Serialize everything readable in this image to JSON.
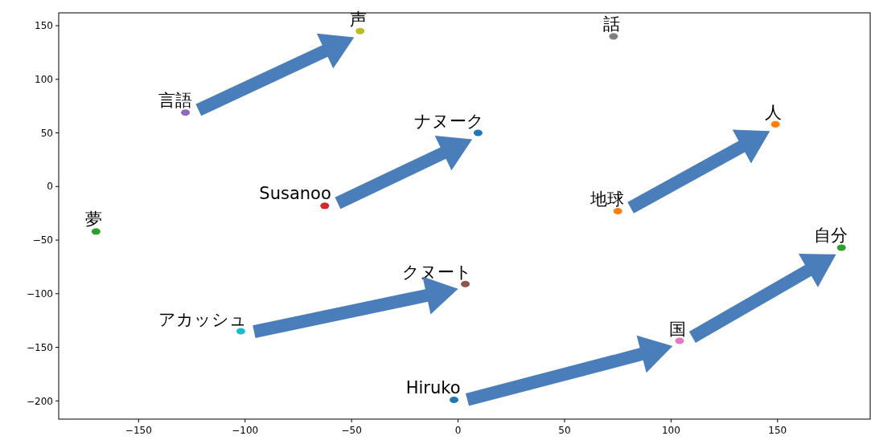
{
  "chart_data": {
    "type": "scatter",
    "xlim": [
      -187.5,
      193.5
    ],
    "ylim": [
      -217,
      162
    ],
    "xticks": [
      {
        "value": -150,
        "label": "−150"
      },
      {
        "value": -100,
        "label": "−100"
      },
      {
        "value": -50,
        "label": "−50"
      },
      0,
      50,
      100,
      150
    ],
    "yticks": [
      {
        "value": -200,
        "label": "−200"
      },
      {
        "value": -150,
        "label": "−150"
      },
      {
        "value": -100,
        "label": "−100"
      },
      {
        "value": -50,
        "label": "−50"
      },
      0,
      50,
      100,
      150
    ],
    "grid": false,
    "marker": "circle",
    "series": [
      {
        "name": "Hiruko",
        "color": "#1f77b4",
        "x": [
          -1.9
        ],
        "values": [
          -199
        ]
      },
      {
        "name": "地球",
        "color": "#ff7f0e",
        "x": [
          75
        ],
        "values": [
          -23
        ]
      },
      {
        "name": "夢",
        "color": "#2ca02c",
        "x": [
          -170
        ],
        "values": [
          -42
        ]
      },
      {
        "name": "Susanoo",
        "color": "#d62728",
        "x": [
          -62.6
        ],
        "values": [
          -18
        ]
      },
      {
        "name": "言語",
        "color": "#9467bd",
        "x": [
          -128
        ],
        "values": [
          69
        ]
      },
      {
        "name": "クヌート",
        "color": "#8c564b",
        "x": [
          3.4
        ],
        "values": [
          -91
        ]
      },
      {
        "name": "国",
        "color": "#e377c2",
        "x": [
          104
        ],
        "values": [
          -144
        ]
      },
      {
        "name": "話",
        "color": "#7f7f7f",
        "x": [
          73
        ],
        "values": [
          140
        ]
      },
      {
        "name": "声",
        "color": "#bcbd22",
        "x": [
          -46
        ],
        "values": [
          145
        ]
      },
      {
        "name": "アカッシュ",
        "color": "#17becf",
        "x": [
          -102
        ],
        "values": [
          -135
        ]
      },
      {
        "name": "ナヌーク",
        "color": "#1f77b4",
        "x": [
          9.4
        ],
        "values": [
          50
        ]
      },
      {
        "name": "人",
        "color": "#ff7f0e",
        "x": [
          149
        ],
        "values": [
          58
        ]
      },
      {
        "name": "自分",
        "color": "#2ca02c",
        "x": [
          180
        ],
        "values": [
          -57
        ]
      }
    ]
  }
}
